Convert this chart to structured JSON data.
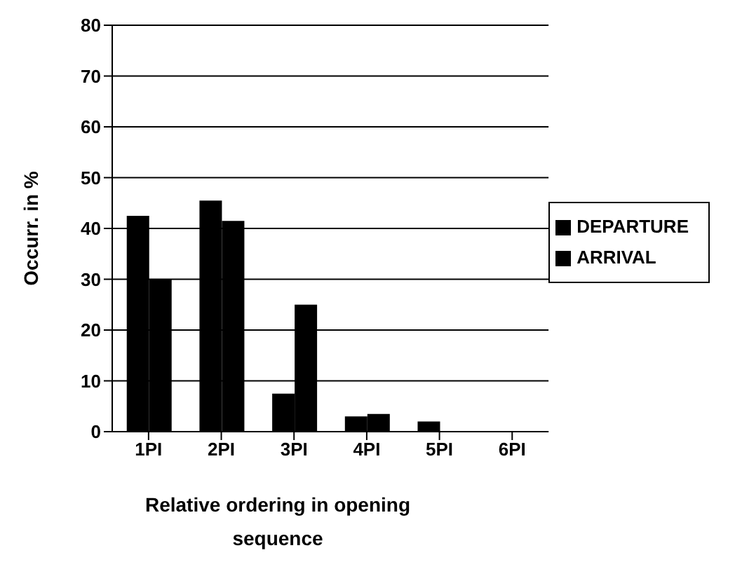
{
  "chart_data": {
    "type": "bar",
    "xlabel": "Relative ordering in opening sequence",
    "ylabel": "Occurr. in %",
    "categories": [
      "1PI",
      "2PI",
      "3PI",
      "4PI",
      "5PI",
      "6PI"
    ],
    "series": [
      {
        "name": "DEPARTURE",
        "color": "#000000",
        "values": [
          42.5,
          45.5,
          7.5,
          3,
          2,
          0
        ]
      },
      {
        "name": "ARRIVAL",
        "color": "#000000",
        "values": [
          30,
          41.5,
          25,
          3.5,
          0,
          0
        ]
      }
    ],
    "ylim": [
      0,
      80
    ],
    "yticks": [
      0,
      10,
      20,
      30,
      40,
      50,
      60,
      70,
      80
    ],
    "grid": "y",
    "legend": "right"
  }
}
